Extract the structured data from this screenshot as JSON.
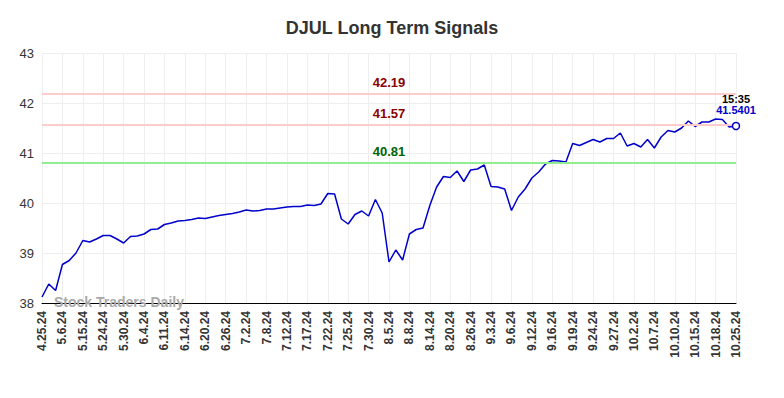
{
  "chart_data": {
    "type": "line",
    "title": "DJUL Long Term Signals",
    "categories": [
      "4.25.24",
      null,
      null,
      "5.6.24",
      null,
      null,
      "5.15.24",
      null,
      null,
      "5.24.24",
      null,
      null,
      "5.30.24",
      null,
      null,
      "6.4.24",
      null,
      null,
      "6.11.24",
      null,
      null,
      "6.14.24",
      null,
      null,
      "6.20.24",
      null,
      null,
      "6.26.24",
      null,
      null,
      "7.2.24",
      null,
      null,
      "7.8.24",
      null,
      null,
      "7.12.24",
      null,
      null,
      "7.17.24",
      null,
      null,
      "7.22.24",
      null,
      null,
      "7.25.24",
      null,
      null,
      "7.30.24",
      null,
      null,
      "8.5.24",
      null,
      null,
      "8.8.24",
      null,
      null,
      "8.14.24",
      null,
      null,
      "8.20.24",
      null,
      null,
      "8.26.24",
      null,
      null,
      "9.3.24",
      null,
      null,
      "9.6.24",
      null,
      null,
      "9.12.24",
      null,
      null,
      "9.16.24",
      null,
      null,
      "9.19.24",
      null,
      null,
      "9.24.24",
      null,
      null,
      "9.27.24",
      null,
      null,
      "10.2.24",
      null,
      null,
      "10.7.24",
      null,
      null,
      "10.10.24",
      null,
      null,
      "10.15.24",
      null,
      null,
      "10.18.24",
      null,
      null,
      "10.25.24"
    ],
    "values": [
      38.12,
      38.38,
      38.25,
      38.77,
      38.85,
      39.0,
      39.25,
      39.22,
      39.28,
      39.35,
      39.35,
      39.28,
      39.2,
      39.33,
      39.34,
      39.38,
      39.47,
      39.48,
      39.57,
      39.6,
      39.64,
      39.65,
      39.67,
      39.7,
      39.69,
      39.72,
      39.75,
      39.77,
      39.79,
      39.82,
      39.86,
      39.84,
      39.85,
      39.88,
      39.88,
      39.9,
      39.92,
      39.93,
      39.93,
      39.96,
      39.95,
      39.98,
      40.19,
      40.18,
      39.68,
      39.58,
      39.77,
      39.84,
      39.74,
      40.07,
      39.8,
      38.82,
      39.06,
      38.86,
      39.38,
      39.47,
      39.5,
      39.95,
      40.32,
      40.53,
      40.51,
      40.64,
      40.43,
      40.66,
      40.68,
      40.76,
      40.33,
      40.32,
      40.28,
      39.85,
      40.12,
      40.28,
      40.5,
      40.62,
      40.78,
      40.85,
      40.84,
      40.82,
      41.19,
      41.15,
      41.21,
      41.27,
      41.22,
      41.29,
      41.29,
      41.4,
      41.14,
      41.19,
      41.12,
      41.27,
      41.1,
      41.32,
      41.45,
      41.42,
      41.5,
      41.64,
      41.53,
      41.62,
      41.62,
      41.68,
      41.67,
      41.52,
      41.5401
    ],
    "color": "#0000cc",
    "ylim": [
      38,
      43
    ],
    "yticks": [
      38,
      39,
      40,
      41,
      42,
      43
    ],
    "grid": true,
    "annotations": [
      {
        "value": 42.19,
        "label": "42.19",
        "color": "#8b0000",
        "line_color": "#ffcccc"
      },
      {
        "value": 41.57,
        "label": "41.57",
        "color": "#8b0000",
        "line_color": "#ffcccc"
      },
      {
        "value": 40.81,
        "label": "40.81",
        "color": "#006400",
        "line_color": "#90ee90"
      }
    ],
    "last_point": {
      "time": "15:35"
    },
    "watermark": "Stock Traders Daily"
  }
}
